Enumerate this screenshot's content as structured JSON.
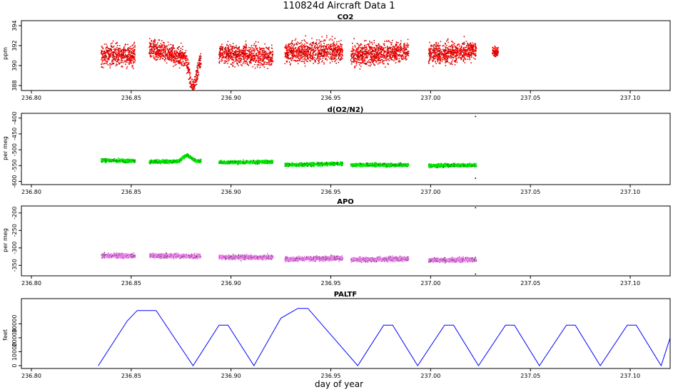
{
  "figure": {
    "title": "110824d   Aircraft Data 1",
    "xlabel": "day of year"
  },
  "chart_data": [
    {
      "type": "scatter",
      "title": "CO2",
      "xlabel": "",
      "ylabel": "ppm",
      "xlim": [
        236.795,
        237.12
      ],
      "ylim": [
        387.5,
        394.5
      ],
      "xticks": [
        "236.80",
        "236.85",
        "236.90",
        "236.95",
        "237.00",
        "237.05",
        "237.10"
      ],
      "yticks": [
        "388",
        "390",
        "392",
        "394"
      ],
      "color": "#ff0000",
      "segments": [
        {
          "x": [
            236.835,
            236.852
          ],
          "y": [
            391.0,
            391.1
          ],
          "spread": 1.2
        },
        {
          "x": [
            236.859,
            236.871
          ],
          "y": [
            391.6,
            391.2
          ],
          "spread": 1.0
        },
        {
          "x": [
            236.871,
            236.885
          ],
          "y": [
            391.0,
            390.8
          ],
          "spread": 1.0,
          "dip": {
            "center": 236.881,
            "depth": 3.0,
            "width": 0.0025
          }
        },
        {
          "x": [
            236.894,
            236.921
          ],
          "y": [
            391.2,
            390.9
          ],
          "spread": 1.1
        },
        {
          "x": [
            236.927,
            236.956
          ],
          "y": [
            391.3,
            391.5
          ],
          "spread": 1.2
        },
        {
          "x": [
            236.96,
            236.989
          ],
          "y": [
            391.1,
            391.4
          ],
          "spread": 1.2
        },
        {
          "x": [
            236.999,
            237.023
          ],
          "y": [
            391.1,
            391.5
          ],
          "spread": 1.1
        },
        {
          "x": [
            237.031,
            237.034
          ],
          "y": [
            391.4,
            391.4
          ],
          "spread": 0.6
        }
      ]
    },
    {
      "type": "scatter",
      "title": "d(O2/N2)",
      "xlabel": "",
      "ylabel": "per meg",
      "xlim": [
        236.795,
        237.12
      ],
      "ylim": [
        -610,
        -385
      ],
      "xticks": [
        "236.80",
        "236.85",
        "236.90",
        "236.95",
        "237.00",
        "237.05",
        "237.10"
      ],
      "yticks": [
        "-600",
        "-550",
        "-500",
        "-450",
        "-400"
      ],
      "color": "#00ee00",
      "segments": [
        {
          "x": [
            236.835,
            236.852
          ],
          "y": [
            -533,
            -536
          ],
          "spread": 6
        },
        {
          "x": [
            236.859,
            236.885
          ],
          "y": [
            -538,
            -536
          ],
          "spread": 6,
          "bump": {
            "center": 236.878,
            "height": 18,
            "width": 0.003
          }
        },
        {
          "x": [
            236.894,
            236.921
          ],
          "y": [
            -540,
            -538
          ],
          "spread": 6
        },
        {
          "x": [
            236.927,
            236.956
          ],
          "y": [
            -548,
            -544
          ],
          "spread": 6
        },
        {
          "x": [
            236.96,
            236.989
          ],
          "y": [
            -548,
            -548
          ],
          "spread": 6
        },
        {
          "x": [
            236.999,
            237.023
          ],
          "y": [
            -550,
            -549
          ],
          "spread": 6
        }
      ],
      "outliers": [
        [
          237.0225,
          -395
        ],
        [
          237.0225,
          -590
        ]
      ]
    },
    {
      "type": "scatter",
      "title": "APO",
      "xlabel": "",
      "ylabel": "per meg",
      "xlim": [
        236.795,
        237.12
      ],
      "ylim": [
        -380,
        -180
      ],
      "xticks": [
        "236.80",
        "236.85",
        "236.90",
        "236.95",
        "237.00",
        "237.05",
        "237.10"
      ],
      "yticks": [
        "-350",
        "-300",
        "-250",
        "-200"
      ],
      "color": "#ee82ee",
      "segments": [
        {
          "x": [
            236.835,
            236.852
          ],
          "y": [
            -322,
            -323
          ],
          "spread": 7
        },
        {
          "x": [
            236.859,
            236.885
          ],
          "y": [
            -322,
            -324
          ],
          "spread": 7
        },
        {
          "x": [
            236.894,
            236.921
          ],
          "y": [
            -327,
            -327
          ],
          "spread": 7
        },
        {
          "x": [
            236.927,
            236.956
          ],
          "y": [
            -333,
            -329
          ],
          "spread": 7
        },
        {
          "x": [
            236.96,
            236.989
          ],
          "y": [
            -334,
            -331
          ],
          "spread": 7
        },
        {
          "x": [
            236.999,
            237.023
          ],
          "y": [
            -335,
            -334
          ],
          "spread": 7
        }
      ],
      "outliers": [
        [
          237.0225,
          -185
        ],
        [
          237.0225,
          -375
        ]
      ]
    },
    {
      "type": "line",
      "title": "PALTF",
      "xlabel": "day of year",
      "ylabel": "feet",
      "xlim": [
        236.795,
        237.12
      ],
      "ylim": [
        -2000,
        48000
      ],
      "xticks": [
        "236.80",
        "236.85",
        "236.90",
        "236.95",
        "237.00",
        "237.05",
        "237.10"
      ],
      "yticks": [
        "0",
        "10000",
        "20000",
        "30000"
      ],
      "color": "#0000ff",
      "x": [
        236.8335,
        236.848,
        236.853,
        236.8625,
        236.881,
        236.894,
        236.8985,
        236.9115,
        236.925,
        236.9335,
        236.9385,
        236.9635,
        236.9765,
        236.981,
        236.9935,
        237.007,
        237.0115,
        237.024,
        237.0375,
        237.042,
        237.0545,
        237.068,
        237.0725,
        237.085,
        237.0985,
        237.103,
        237.1155,
        237.12
      ],
      "y": [
        0,
        32000,
        39500,
        39500,
        0,
        29000,
        29000,
        0,
        34000,
        41000,
        41000,
        0,
        29000,
        29000,
        0,
        29000,
        29000,
        0,
        29000,
        29000,
        0,
        29000,
        29000,
        0,
        29000,
        29000,
        0,
        20000
      ]
    }
  ]
}
